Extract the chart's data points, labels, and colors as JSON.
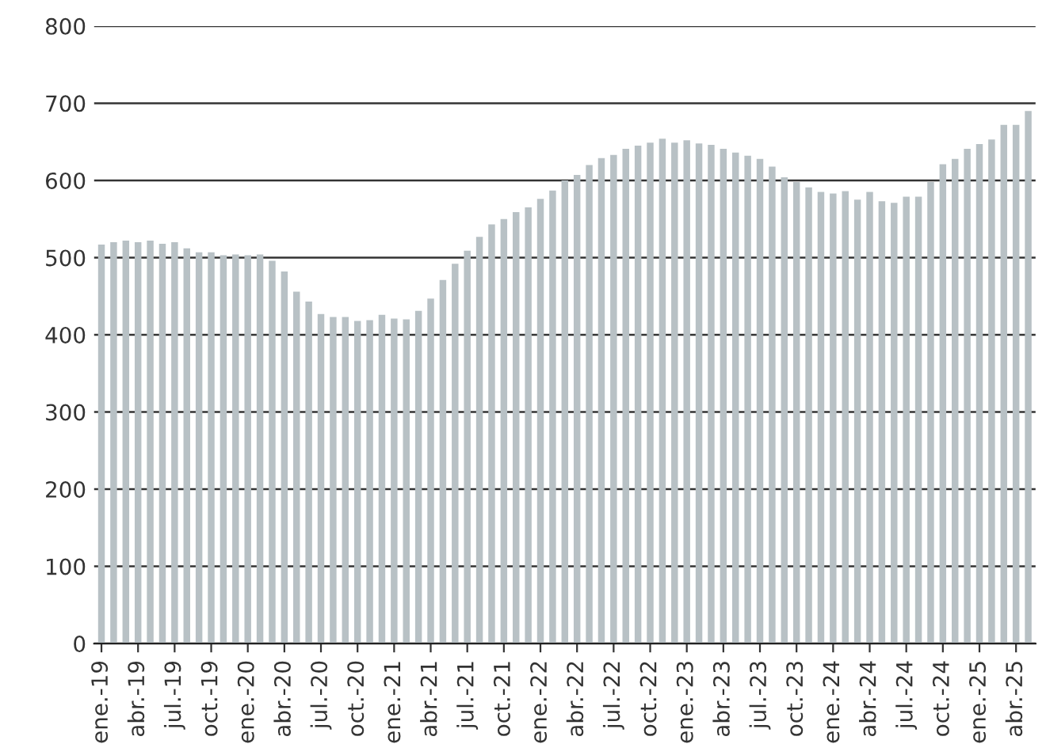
{
  "chart_data": {
    "type": "bar",
    "categories": [
      "ene.-19",
      null,
      null,
      "abr.-19",
      null,
      null,
      "jul.-19",
      null,
      null,
      "oct.-19",
      null,
      null,
      "ene.-20",
      null,
      null,
      "abr.-20",
      null,
      null,
      "jul.-20",
      null,
      null,
      "oct.-20",
      null,
      null,
      "ene.-21",
      null,
      null,
      "abr.-21",
      null,
      null,
      "jul.-21",
      null,
      null,
      "oct.-21",
      null,
      null,
      "ene.-22",
      null,
      null,
      "abr.-22",
      null,
      null,
      "jul.-22",
      null,
      null,
      "oct.-22",
      null,
      null,
      "ene.-23",
      null,
      null,
      "abr.-23",
      null,
      null,
      "jul.-23",
      null,
      null,
      "oct.-23",
      null,
      null,
      "ene.-24",
      null,
      null,
      "abr.-24",
      null,
      null,
      "jul.-24",
      null,
      null,
      "oct.-24",
      null,
      null,
      "ene.-25",
      null,
      null,
      "abr.-25",
      null
    ],
    "values": [
      517,
      520,
      522,
      520,
      522,
      518,
      520,
      512,
      507,
      507,
      503,
      504,
      503,
      504,
      496,
      482,
      456,
      443,
      427,
      423,
      423,
      418,
      419,
      426,
      421,
      420,
      431,
      447,
      471,
      492,
      509,
      527,
      543,
      550,
      559,
      565,
      576,
      587,
      600,
      607,
      620,
      629,
      633,
      641,
      645,
      649,
      654,
      649,
      652,
      648,
      646,
      641,
      636,
      632,
      628,
      618,
      604,
      598,
      591,
      585,
      583,
      586,
      575,
      585,
      573,
      571,
      579,
      579,
      598,
      621,
      628,
      641,
      647,
      653,
      672,
      672,
      690
    ],
    "color": "#b8c1c5",
    "ylim": [
      0,
      800
    ],
    "yticks": [
      0,
      100,
      200,
      300,
      400,
      500,
      600,
      700,
      800
    ],
    "grid": "y"
  }
}
